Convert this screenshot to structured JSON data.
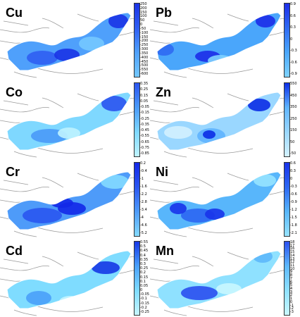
{
  "panels": [
    {
      "label": "Cu",
      "ticks": [
        "250",
        "200",
        "150",
        "100",
        "50",
        "0",
        "-50",
        "-100",
        "-150",
        "-200",
        "-250",
        "-300",
        "-350",
        "-400",
        "-450",
        "-500",
        "-550",
        "-600"
      ],
      "palette": [
        "#1a33e6",
        "#2f5ef2",
        "#4fa0fb",
        "#74c8ff"
      ],
      "variant": 0
    },
    {
      "label": "Pb",
      "ticks": [
        "0.9",
        "0.6",
        "0.3",
        "0",
        "-0.3",
        "-0.6",
        "-0.9"
      ],
      "palette": [
        "#1c2de8",
        "#2f6af2",
        "#4aa6fb",
        "#7fd3ff"
      ],
      "variant": 1
    },
    {
      "label": "Co",
      "ticks": [
        "0.35",
        "0.25",
        "0.15",
        "0.05",
        "-0.05",
        "-0.15",
        "-0.25",
        "-0.35",
        "-0.45",
        "-0.55",
        "-0.65",
        "-0.75",
        "-0.85"
      ],
      "palette": [
        "#2b54ef",
        "#4a9af8",
        "#7fd8ff",
        "#bff3ff"
      ],
      "variant": 2
    },
    {
      "label": "Zn",
      "ticks": [
        "550",
        "450",
        "350",
        "250",
        "150",
        "50",
        "-50"
      ],
      "palette": [
        "#0b2de6",
        "#5fb4ff",
        "#9ad7ff",
        "#d3f1ff"
      ],
      "variant": 3
    },
    {
      "label": "Cr",
      "ticks": [
        "0.2",
        "-0.4",
        "-1",
        "-1.6",
        "-2.2",
        "-2.8",
        "-3.4",
        "-4",
        "-4.6",
        "-5.2"
      ],
      "palette": [
        "#1328e8",
        "#2a56f0",
        "#4e9bf9",
        "#84daff"
      ],
      "variant": 4
    },
    {
      "label": "Ni",
      "ticks": [
        "0.6",
        "0.3",
        "0",
        "-0.3",
        "-0.6",
        "-0.9",
        "-1.2",
        "-1.5",
        "-1.8",
        "-2.1"
      ],
      "palette": [
        "#1833ea",
        "#2c66f2",
        "#58b6fb",
        "#97e3ff"
      ],
      "variant": 5
    },
    {
      "label": "Cd",
      "ticks": [
        "0.55",
        "0.5",
        "0.45",
        "0.4",
        "0.35",
        "0.3",
        "0.25",
        "0.2",
        "0.15",
        "0.1",
        "0.05",
        "0",
        "-0.05",
        "-0.1",
        "-0.15",
        "-0.2",
        "-0.25"
      ],
      "palette": [
        "#1637e6",
        "#4aa0fa",
        "#7fdcff",
        "#c7f5ff"
      ],
      "variant": 6
    },
    {
      "label": "Mn",
      "ticks": [
        "18",
        "17",
        "16",
        "15",
        "14",
        "13",
        "12",
        "11",
        "10",
        "9",
        "8",
        "7",
        "6",
        "5",
        "4",
        "3",
        "2",
        "1",
        "0",
        "-1",
        "-2",
        "-3"
      ],
      "palette": [
        "#2a4fef",
        "#5db8fb",
        "#8fe1ff",
        "#c9f7ff"
      ],
      "variant": 7
    }
  ]
}
